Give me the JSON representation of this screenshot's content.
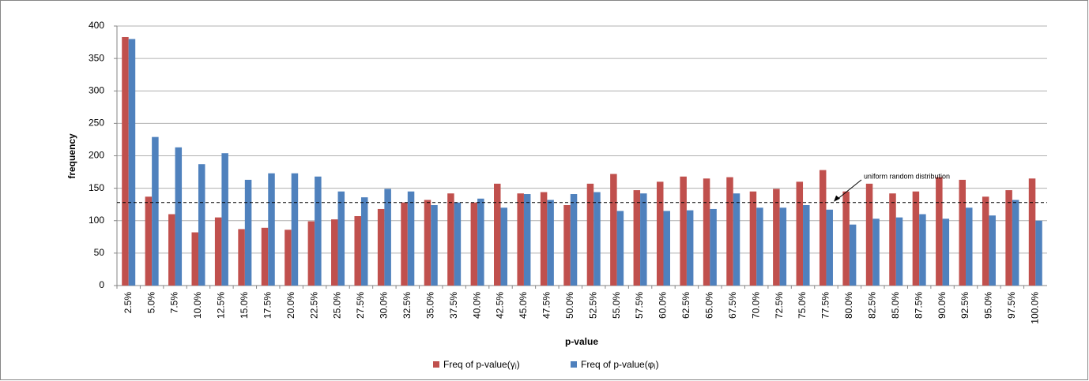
{
  "chart_data": {
    "type": "bar",
    "x_label": "p-value",
    "y_label": "frequency",
    "categories": [
      "2.5%",
      "5.0%",
      "7.5%",
      "10.0%",
      "12.5%",
      "15.0%",
      "17.5%",
      "20.0%",
      "22.5%",
      "25.0%",
      "27.5%",
      "30.0%",
      "32.5%",
      "35.0%",
      "37.5%",
      "40.0%",
      "42.5%",
      "45.0%",
      "47.5%",
      "50.0%",
      "52.5%",
      "55.0%",
      "57.5%",
      "60.0%",
      "62.5%",
      "65.0%",
      "67.5%",
      "70.0%",
      "72.5%",
      "75.0%",
      "77.5%",
      "80.0%",
      "82.5%",
      "85.0%",
      "87.5%",
      "90.0%",
      "92.5%",
      "95.0%",
      "97.5%",
      "100.0%"
    ],
    "series": [
      {
        "name": "Freq of p-value(γⱼ)",
        "color": "#c0504d",
        "values": [
          383,
          137,
          110,
          82,
          105,
          87,
          89,
          86,
          99,
          102,
          107,
          118,
          128,
          132,
          142,
          128,
          157,
          142,
          144,
          124,
          157,
          172,
          147,
          160,
          168,
          165,
          167,
          145,
          149,
          160,
          178,
          145,
          157,
          142,
          145,
          167,
          163,
          137,
          147,
          165
        ]
      },
      {
        "name": "Freq of p-value(φⱼ)",
        "color": "#4f81bd",
        "values": [
          380,
          229,
          213,
          187,
          204,
          163,
          173,
          173,
          168,
          145,
          136,
          149,
          145,
          124,
          128,
          134,
          120,
          141,
          132,
          141,
          144,
          115,
          142,
          115,
          116,
          118,
          142,
          120,
          120,
          124,
          117,
          94,
          103,
          105,
          110,
          103,
          120,
          108,
          132,
          100
        ]
      }
    ],
    "reference_line": {
      "value": 128,
      "label": "uniform random distribution"
    },
    "ylim": [
      0,
      400
    ],
    "yticks": [
      0,
      50,
      100,
      150,
      200,
      250,
      300,
      350,
      400
    ],
    "grid": true,
    "legend": "bottom"
  }
}
